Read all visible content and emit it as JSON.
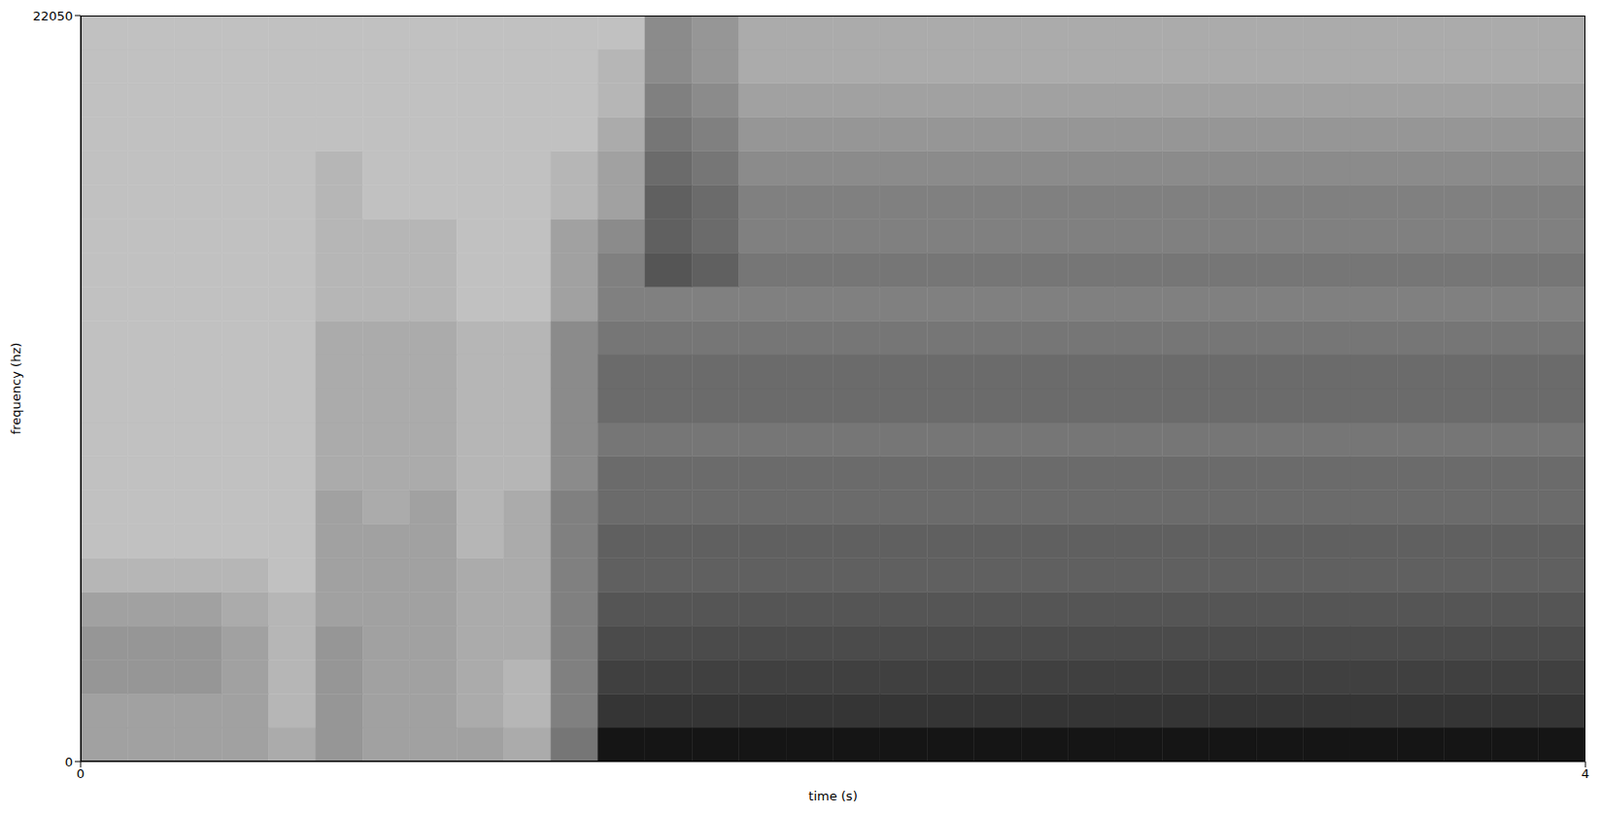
{
  "chart_data": {
    "type": "spectrogram",
    "x_label": "time (s)",
    "y_label": "frequency (hz)",
    "xlim": [
      0,
      4
    ],
    "xticks": [
      0,
      4
    ],
    "ylim": [
      0,
      22050
    ],
    "yticks": [
      0,
      22050
    ],
    "color": "gray",
    "time_edges": [
      0,
      0.125,
      0.25,
      0.375,
      0.5,
      0.625,
      0.75,
      0.875,
      1,
      1.125,
      1.25,
      1.375,
      1.5,
      1.625,
      1.75,
      1.875,
      2,
      2.125,
      2.25,
      2.375,
      2.5,
      2.625,
      2.75,
      2.875,
      3,
      3.125,
      3.25,
      3.375,
      3.5,
      3.625,
      3.75,
      3.875,
      4
    ],
    "freq_edges": [
      0,
      1002,
      2005,
      3007,
      4009,
      5011,
      6014,
      7016,
      8018,
      9020,
      10023,
      11025,
      12027,
      13030,
      14032,
      15034,
      16036,
      17039,
      18041,
      19043,
      20045,
      21048,
      22050
    ],
    "intensity": [
      [
        0.3,
        0.3,
        0.3,
        0.3,
        0.25,
        0.35,
        0.3,
        0.3,
        0.3,
        0.25,
        0.5,
        0.95,
        0.95,
        0.95,
        0.95,
        0.95,
        0.95,
        0.95,
        0.95,
        0.95,
        0.95,
        0.95,
        0.95,
        0.95,
        0.95,
        0.95,
        0.95,
        0.95,
        0.95,
        0.95,
        0.95,
        0.95
      ],
      [
        0.3,
        0.3,
        0.3,
        0.3,
        0.2,
        0.35,
        0.3,
        0.3,
        0.25,
        0.2,
        0.45,
        0.8,
        0.8,
        0.8,
        0.8,
        0.8,
        0.8,
        0.8,
        0.8,
        0.8,
        0.8,
        0.8,
        0.8,
        0.8,
        0.8,
        0.8,
        0.8,
        0.8,
        0.8,
        0.8,
        0.8,
        0.8
      ],
      [
        0.35,
        0.35,
        0.35,
        0.3,
        0.2,
        0.35,
        0.3,
        0.3,
        0.25,
        0.2,
        0.45,
        0.75,
        0.75,
        0.75,
        0.75,
        0.75,
        0.75,
        0.75,
        0.75,
        0.75,
        0.75,
        0.75,
        0.75,
        0.75,
        0.75,
        0.75,
        0.75,
        0.75,
        0.75,
        0.75,
        0.75,
        0.75
      ],
      [
        0.35,
        0.35,
        0.35,
        0.3,
        0.2,
        0.35,
        0.3,
        0.3,
        0.25,
        0.25,
        0.45,
        0.7,
        0.7,
        0.7,
        0.7,
        0.7,
        0.7,
        0.7,
        0.7,
        0.7,
        0.7,
        0.7,
        0.7,
        0.7,
        0.7,
        0.7,
        0.7,
        0.7,
        0.7,
        0.7,
        0.7,
        0.7
      ],
      [
        0.3,
        0.3,
        0.3,
        0.25,
        0.2,
        0.3,
        0.3,
        0.3,
        0.25,
        0.25,
        0.45,
        0.65,
        0.65,
        0.65,
        0.65,
        0.65,
        0.65,
        0.65,
        0.65,
        0.65,
        0.65,
        0.65,
        0.65,
        0.65,
        0.65,
        0.65,
        0.65,
        0.65,
        0.65,
        0.65,
        0.65,
        0.65
      ],
      [
        0.2,
        0.2,
        0.2,
        0.2,
        0.15,
        0.3,
        0.3,
        0.3,
        0.25,
        0.25,
        0.45,
        0.6,
        0.6,
        0.6,
        0.6,
        0.6,
        0.6,
        0.6,
        0.6,
        0.6,
        0.6,
        0.6,
        0.6,
        0.6,
        0.6,
        0.6,
        0.6,
        0.6,
        0.6,
        0.6,
        0.6,
        0.6
      ],
      [
        0.15,
        0.15,
        0.15,
        0.15,
        0.15,
        0.3,
        0.3,
        0.3,
        0.2,
        0.25,
        0.45,
        0.6,
        0.6,
        0.6,
        0.6,
        0.6,
        0.6,
        0.6,
        0.6,
        0.6,
        0.6,
        0.6,
        0.6,
        0.6,
        0.6,
        0.6,
        0.6,
        0.6,
        0.6,
        0.6,
        0.6,
        0.6
      ],
      [
        0.15,
        0.15,
        0.15,
        0.15,
        0.15,
        0.3,
        0.25,
        0.3,
        0.2,
        0.25,
        0.45,
        0.55,
        0.55,
        0.55,
        0.55,
        0.55,
        0.55,
        0.55,
        0.55,
        0.55,
        0.55,
        0.55,
        0.55,
        0.55,
        0.55,
        0.55,
        0.55,
        0.55,
        0.55,
        0.55,
        0.55,
        0.55
      ],
      [
        0.15,
        0.15,
        0.15,
        0.15,
        0.15,
        0.25,
        0.25,
        0.25,
        0.2,
        0.2,
        0.4,
        0.55,
        0.55,
        0.55,
        0.55,
        0.55,
        0.55,
        0.55,
        0.55,
        0.55,
        0.55,
        0.55,
        0.55,
        0.55,
        0.55,
        0.55,
        0.55,
        0.55,
        0.55,
        0.55,
        0.55,
        0.55
      ],
      [
        0.15,
        0.15,
        0.15,
        0.15,
        0.15,
        0.25,
        0.25,
        0.25,
        0.2,
        0.2,
        0.4,
        0.5,
        0.5,
        0.5,
        0.5,
        0.5,
        0.5,
        0.5,
        0.5,
        0.5,
        0.5,
        0.5,
        0.5,
        0.5,
        0.5,
        0.5,
        0.5,
        0.5,
        0.5,
        0.5,
        0.5,
        0.5
      ],
      [
        0.15,
        0.15,
        0.15,
        0.15,
        0.15,
        0.25,
        0.25,
        0.25,
        0.2,
        0.2,
        0.4,
        0.55,
        0.55,
        0.55,
        0.55,
        0.55,
        0.55,
        0.55,
        0.55,
        0.55,
        0.55,
        0.55,
        0.55,
        0.55,
        0.55,
        0.55,
        0.55,
        0.55,
        0.55,
        0.55,
        0.55,
        0.55
      ],
      [
        0.15,
        0.15,
        0.15,
        0.15,
        0.15,
        0.25,
        0.25,
        0.25,
        0.2,
        0.2,
        0.4,
        0.55,
        0.55,
        0.55,
        0.55,
        0.55,
        0.55,
        0.55,
        0.55,
        0.55,
        0.55,
        0.55,
        0.55,
        0.55,
        0.55,
        0.55,
        0.55,
        0.55,
        0.55,
        0.55,
        0.55,
        0.55
      ],
      [
        0.15,
        0.15,
        0.15,
        0.15,
        0.15,
        0.25,
        0.25,
        0.25,
        0.2,
        0.2,
        0.4,
        0.5,
        0.5,
        0.5,
        0.5,
        0.5,
        0.5,
        0.5,
        0.5,
        0.5,
        0.5,
        0.5,
        0.5,
        0.5,
        0.5,
        0.5,
        0.5,
        0.5,
        0.5,
        0.5,
        0.5,
        0.5
      ],
      [
        0.15,
        0.15,
        0.15,
        0.15,
        0.15,
        0.2,
        0.2,
        0.2,
        0.15,
        0.15,
        0.3,
        0.45,
        0.45,
        0.45,
        0.45,
        0.45,
        0.45,
        0.45,
        0.45,
        0.45,
        0.45,
        0.45,
        0.45,
        0.45,
        0.45,
        0.45,
        0.45,
        0.45,
        0.45,
        0.45,
        0.45,
        0.45
      ],
      [
        0.15,
        0.15,
        0.15,
        0.15,
        0.15,
        0.2,
        0.2,
        0.2,
        0.15,
        0.15,
        0.3,
        0.45,
        0.65,
        0.6,
        0.5,
        0.5,
        0.5,
        0.5,
        0.5,
        0.5,
        0.5,
        0.5,
        0.5,
        0.5,
        0.5,
        0.5,
        0.5,
        0.5,
        0.5,
        0.5,
        0.5,
        0.5
      ],
      [
        0.15,
        0.15,
        0.15,
        0.15,
        0.15,
        0.2,
        0.2,
        0.2,
        0.15,
        0.15,
        0.3,
        0.4,
        0.6,
        0.55,
        0.45,
        0.45,
        0.45,
        0.45,
        0.45,
        0.45,
        0.45,
        0.45,
        0.45,
        0.45,
        0.45,
        0.45,
        0.45,
        0.45,
        0.45,
        0.45,
        0.45,
        0.45
      ],
      [
        0.15,
        0.15,
        0.15,
        0.15,
        0.15,
        0.2,
        0.15,
        0.15,
        0.15,
        0.15,
        0.2,
        0.3,
        0.6,
        0.55,
        0.45,
        0.45,
        0.45,
        0.45,
        0.45,
        0.45,
        0.45,
        0.45,
        0.45,
        0.45,
        0.45,
        0.45,
        0.45,
        0.45,
        0.45,
        0.45,
        0.45,
        0.45
      ],
      [
        0.15,
        0.15,
        0.15,
        0.15,
        0.15,
        0.2,
        0.15,
        0.15,
        0.15,
        0.15,
        0.2,
        0.3,
        0.55,
        0.5,
        0.4,
        0.4,
        0.4,
        0.4,
        0.4,
        0.4,
        0.4,
        0.4,
        0.4,
        0.4,
        0.4,
        0.4,
        0.4,
        0.4,
        0.4,
        0.4,
        0.4,
        0.4
      ],
      [
        0.15,
        0.15,
        0.15,
        0.15,
        0.15,
        0.15,
        0.15,
        0.15,
        0.15,
        0.15,
        0.15,
        0.25,
        0.5,
        0.45,
        0.35,
        0.35,
        0.35,
        0.35,
        0.35,
        0.35,
        0.35,
        0.35,
        0.35,
        0.35,
        0.35,
        0.35,
        0.35,
        0.35,
        0.35,
        0.35,
        0.35,
        0.35
      ],
      [
        0.15,
        0.15,
        0.15,
        0.15,
        0.15,
        0.15,
        0.15,
        0.15,
        0.15,
        0.15,
        0.15,
        0.2,
        0.45,
        0.4,
        0.3,
        0.3,
        0.3,
        0.3,
        0.3,
        0.3,
        0.3,
        0.3,
        0.3,
        0.3,
        0.3,
        0.3,
        0.3,
        0.3,
        0.3,
        0.3,
        0.3,
        0.3
      ],
      [
        0.15,
        0.15,
        0.15,
        0.15,
        0.15,
        0.15,
        0.15,
        0.15,
        0.15,
        0.15,
        0.15,
        0.2,
        0.4,
        0.35,
        0.25,
        0.25,
        0.25,
        0.25,
        0.25,
        0.25,
        0.25,
        0.25,
        0.25,
        0.25,
        0.25,
        0.25,
        0.25,
        0.25,
        0.25,
        0.25,
        0.25,
        0.25
      ],
      [
        0.15,
        0.15,
        0.15,
        0.15,
        0.15,
        0.15,
        0.15,
        0.15,
        0.15,
        0.15,
        0.15,
        0.15,
        0.4,
        0.35,
        0.25,
        0.25,
        0.25,
        0.25,
        0.25,
        0.25,
        0.25,
        0.25,
        0.25,
        0.25,
        0.25,
        0.25,
        0.25,
        0.25,
        0.25,
        0.25,
        0.25,
        0.25
      ]
    ]
  }
}
